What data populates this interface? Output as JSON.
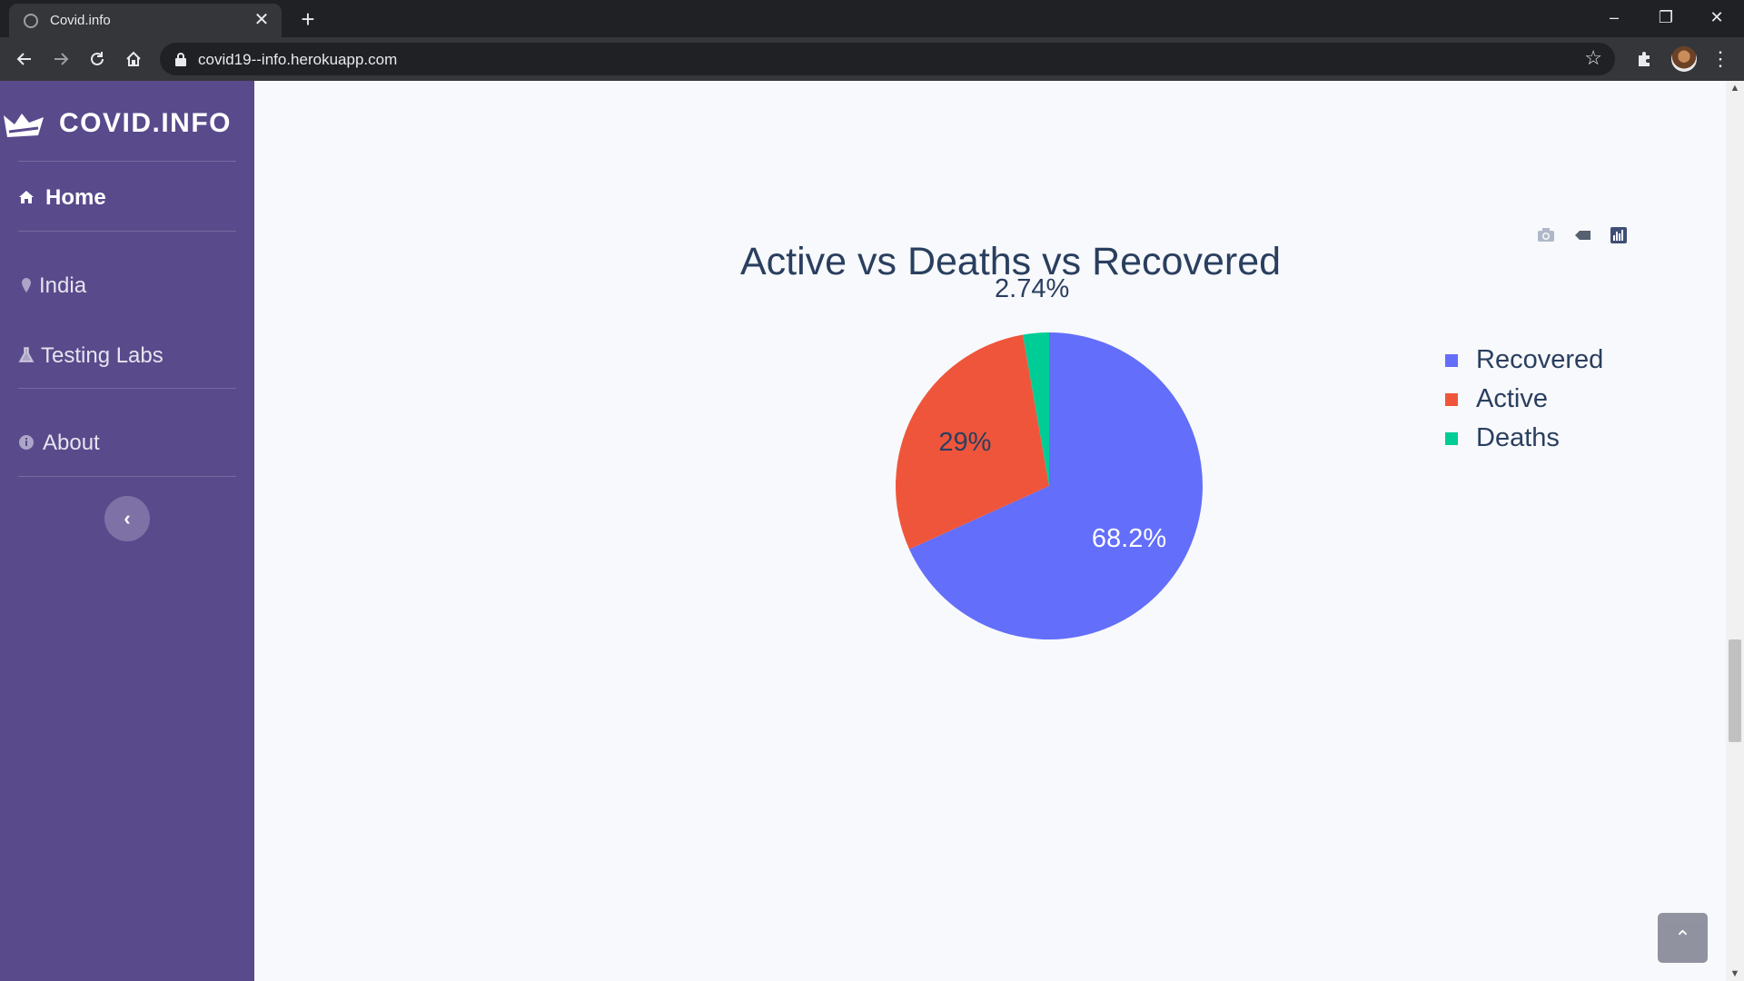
{
  "browser": {
    "tab_title": "Covid.info",
    "tab_close": "✕",
    "new_tab": "+",
    "url": "covid19--info.herokuapp.com",
    "window_controls": {
      "minimize": "–",
      "restore": "❐",
      "close": "✕"
    },
    "icons": [
      "globe-icon",
      "back-arrow-icon",
      "forward-arrow-icon",
      "reload-icon",
      "home-icon",
      "lock-icon",
      "star-icon",
      "extensions-icon",
      "profile-avatar",
      "menu-icon"
    ]
  },
  "sidebar": {
    "brand": "COVID.INFO",
    "items": [
      {
        "label": "Home",
        "icon": "home-icon",
        "active": true
      },
      {
        "label": "India",
        "icon": "map-marker-icon",
        "active": false
      },
      {
        "label": "Testing Labs",
        "icon": "flask-icon",
        "active": false
      },
      {
        "label": "About",
        "icon": "info-circle-icon",
        "active": false
      }
    ],
    "collapse_glyph": "‹"
  },
  "modebar": {
    "icons": [
      "camera-icon",
      "tag-icon",
      "plotly-logo-icon"
    ]
  },
  "chart_data": {
    "type": "pie",
    "title": "Active vs Deaths vs Recovered",
    "labels": [
      "Recovered",
      "Active",
      "Deaths"
    ],
    "values": [
      68.2,
      29,
      2.74
    ],
    "text_labels": [
      "68.2%",
      "29%",
      "2.74%"
    ],
    "colors": [
      "#636efa",
      "#ef553b",
      "#00cc96"
    ],
    "legend_position": "top-right"
  },
  "back_to_top_glyph": "⌃"
}
